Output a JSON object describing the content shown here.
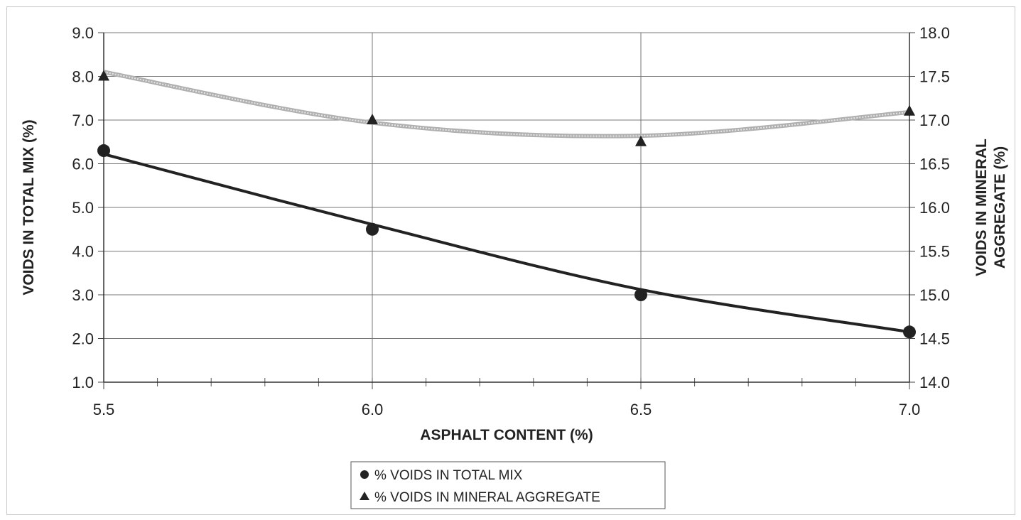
{
  "chart_data": {
    "type": "line",
    "xlabel": "ASPHALT CONTENT (%)",
    "ylabel": "VOIDS IN TOTAL MIX (%)",
    "y2label": [
      "VOIDS IN MINERAL",
      "AGGREGATE (%)"
    ],
    "xlim": [
      5.5,
      7.0
    ],
    "ylim": [
      1.0,
      9.0
    ],
    "y2lim": [
      14.0,
      18.0
    ],
    "x_ticks": [
      "5.5",
      "6.0",
      "6.5",
      "7.0"
    ],
    "y_ticks": [
      "1.0",
      "2.0",
      "3.0",
      "4.0",
      "5.0",
      "6.0",
      "7.0",
      "8.0",
      "9.0"
    ],
    "y2_ticks": [
      "14.0",
      "14.5",
      "15.0",
      "15.5",
      "16.0",
      "16.5",
      "17.0",
      "17.5",
      "18.0"
    ],
    "grid": true,
    "legend_position": "bottom-center",
    "series": [
      {
        "name": "% VOIDS IN TOTAL MIX",
        "axis": "left",
        "marker": "circle",
        "color": "#222222",
        "x": [
          5.5,
          6.0,
          6.5,
          7.0
        ],
        "y": [
          6.3,
          4.5,
          3.0,
          2.15
        ],
        "trend": [
          6.22,
          4.61,
          3.12,
          2.15
        ]
      },
      {
        "name": "% VOIDS IN MINERAL AGGREGATE",
        "axis": "right",
        "marker": "triangle",
        "color": "#9a9a9a",
        "x": [
          5.5,
          6.0,
          6.5,
          7.0
        ],
        "y": [
          17.5,
          17.0,
          16.75,
          17.1
        ],
        "trend": [
          17.55,
          16.97,
          16.82,
          17.09
        ]
      }
    ]
  }
}
